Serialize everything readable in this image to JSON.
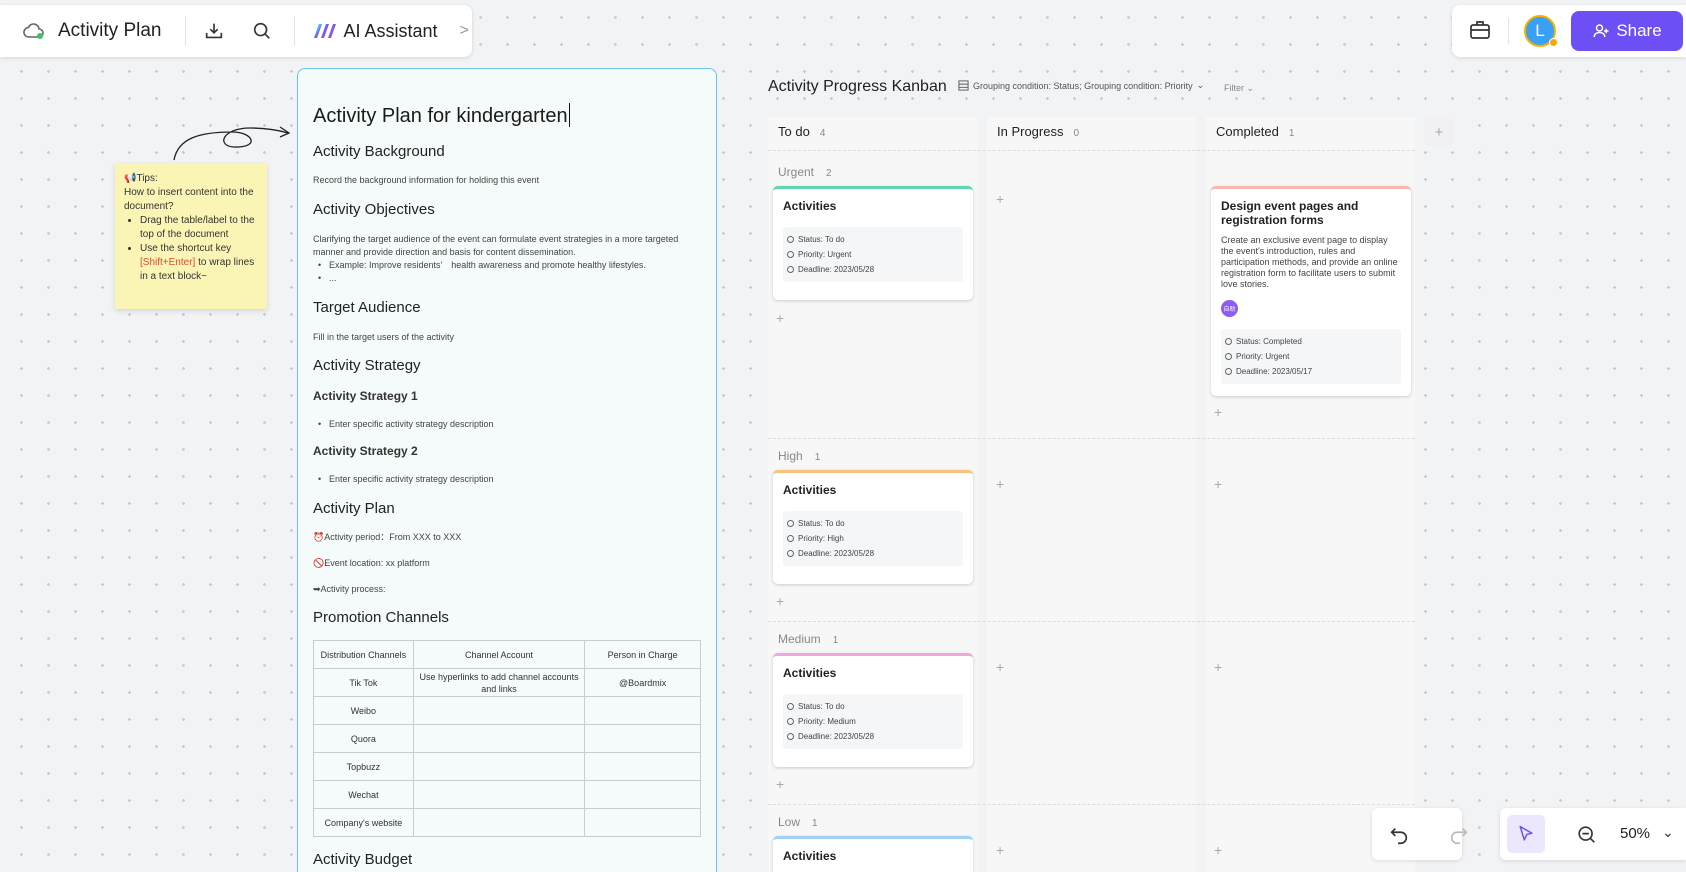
{
  "toolbar": {
    "title": "Activity Plan",
    "ai_label": "AI Assistant",
    "share_label": "Share",
    "avatar_letter": "L"
  },
  "sticky": {
    "heading": "📢Tips:",
    "question": "How to insert content into the document?",
    "tip1": "Drag the table/label to the top of the document",
    "tip2_pre": "Use the shortcut key ",
    "tip2_key": "[Shift+Enter]",
    "tip2_post": " to wrap lines in a text block~"
  },
  "doc": {
    "title": "Activity Plan for kindergarten",
    "h_background": "Activity Background",
    "p_background": "Record the background information for holding this event",
    "h_objectives": "Activity Objectives",
    "p_objectives": "Clarifying the target audience of the event can formulate event strategies in a more targeted manner and provide direction and basis for content dissemination.",
    "li_obj1": "Example: Improve residents'　health awareness and promote healthy lifestyles.",
    "li_obj2": "...",
    "h_audience": "Target Audience",
    "p_audience": "Fill in the target users of the activity",
    "h_strategy": "Activity Strategy",
    "h_strategy1": "Activity Strategy 1",
    "li_strategy1": "Enter specific activity strategy description",
    "h_strategy2": "Activity Strategy 2",
    "li_strategy2": "Enter specific activity strategy description",
    "h_plan": "Activity Plan",
    "p_period": "⏰Activity period：From XXX to XXX",
    "p_location": "🚫Event location: xx platform",
    "p_process": "➡Activity process:",
    "h_promotion": "Promotion Channels",
    "table_headers": [
      "Distribution Channels",
      "Channel Account",
      "Person in Charge"
    ],
    "table_rows": [
      [
        "Tik Tok",
        "Use hyperlinks to add channel accounts and links",
        "@Boardmix"
      ],
      [
        "Weibo",
        "",
        ""
      ],
      [
        "Quora",
        "",
        ""
      ],
      [
        "Topbuzz",
        "",
        ""
      ],
      [
        "Wechat",
        "",
        ""
      ],
      [
        "Company's website",
        "",
        ""
      ]
    ],
    "h_budget": "Activity Budget"
  },
  "kanban": {
    "title": "Activity Progress Kanban",
    "grouping": "Grouping condition: Status; Grouping condition: Priority",
    "filter": "Filter",
    "columns": [
      {
        "name": "To do",
        "count": "4"
      },
      {
        "name": "In Progress",
        "count": "0"
      },
      {
        "name": "Completed",
        "count": "1"
      }
    ],
    "rows": [
      {
        "name": "Urgent",
        "count": "2"
      },
      {
        "name": "High",
        "count": "1"
      },
      {
        "name": "Medium",
        "count": "1"
      },
      {
        "name": "Low",
        "count": "1"
      }
    ],
    "cards": {
      "urgent_todo": {
        "title": "Activities",
        "status": "Status: To do",
        "priority": "Priority: Urgent",
        "deadline": "Deadline: 2023/05/28",
        "accent": "#5dd6b1"
      },
      "urgent_done": {
        "title": "Design event pages and registration forms",
        "desc": "Create an exclusive event page to display the event's introduction, rules and participation methods, and provide an online registration form to facilitate users to submit love stories.",
        "avatar": "自助",
        "status": "Status: Completed",
        "priority": "Priority: Urgent",
        "deadline": "Deadline: 2023/05/17",
        "accent": "#f6b8b0"
      },
      "high_todo": {
        "title": "Activities",
        "status": "Status: To do",
        "priority": "Priority: High",
        "deadline": "Deadline: 2023/05/28",
        "accent": "#f9c27c"
      },
      "medium_todo": {
        "title": "Activities",
        "status": "Status: To do",
        "priority": "Priority: Medium",
        "deadline": "Deadline: 2023/05/28",
        "accent": "#f2a6e0"
      },
      "low_todo": {
        "title": "Activities",
        "accent": "#9fd0f5"
      }
    }
  },
  "controls": {
    "zoom": "50%"
  },
  "colors": {
    "accent": "#6e4ff6",
    "doc_border": "#6cc3df"
  }
}
